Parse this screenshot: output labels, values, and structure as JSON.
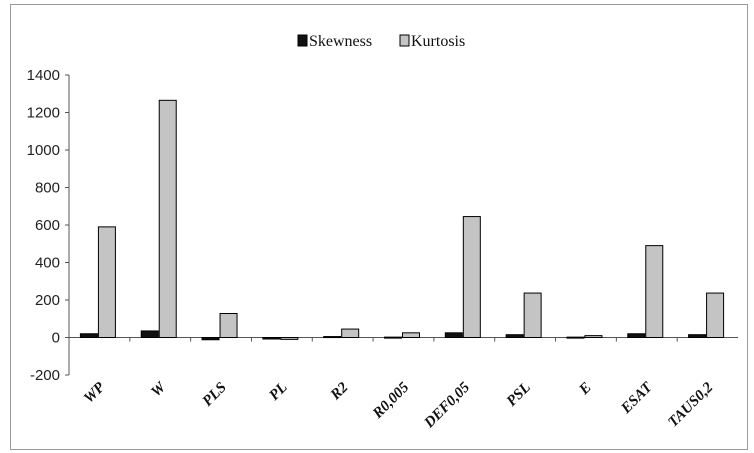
{
  "chart_data": {
    "type": "bar",
    "categories": [
      "WP",
      "W",
      "PLS",
      "PL",
      "R2",
      "R0,005",
      "DEF0,05",
      "PSL",
      "E",
      "ESAT",
      "TAUS0,2"
    ],
    "series": [
      {
        "name": "Skewness",
        "color": "#111111",
        "values": [
          20,
          35,
          -12,
          -8,
          5,
          2,
          25,
          15,
          2,
          20,
          15
        ]
      },
      {
        "name": "Kurtosis",
        "color": "#c4c4c4",
        "values": [
          590,
          1265,
          128,
          -10,
          45,
          25,
          645,
          237,
          10,
          490,
          237
        ]
      }
    ],
    "ylim": [
      -200,
      1400
    ],
    "yticks": [
      "-200",
      "0",
      "200",
      "400",
      "600",
      "800",
      "1000",
      "1200",
      "1400"
    ],
    "legend_position": "top-center",
    "grid": false
  }
}
